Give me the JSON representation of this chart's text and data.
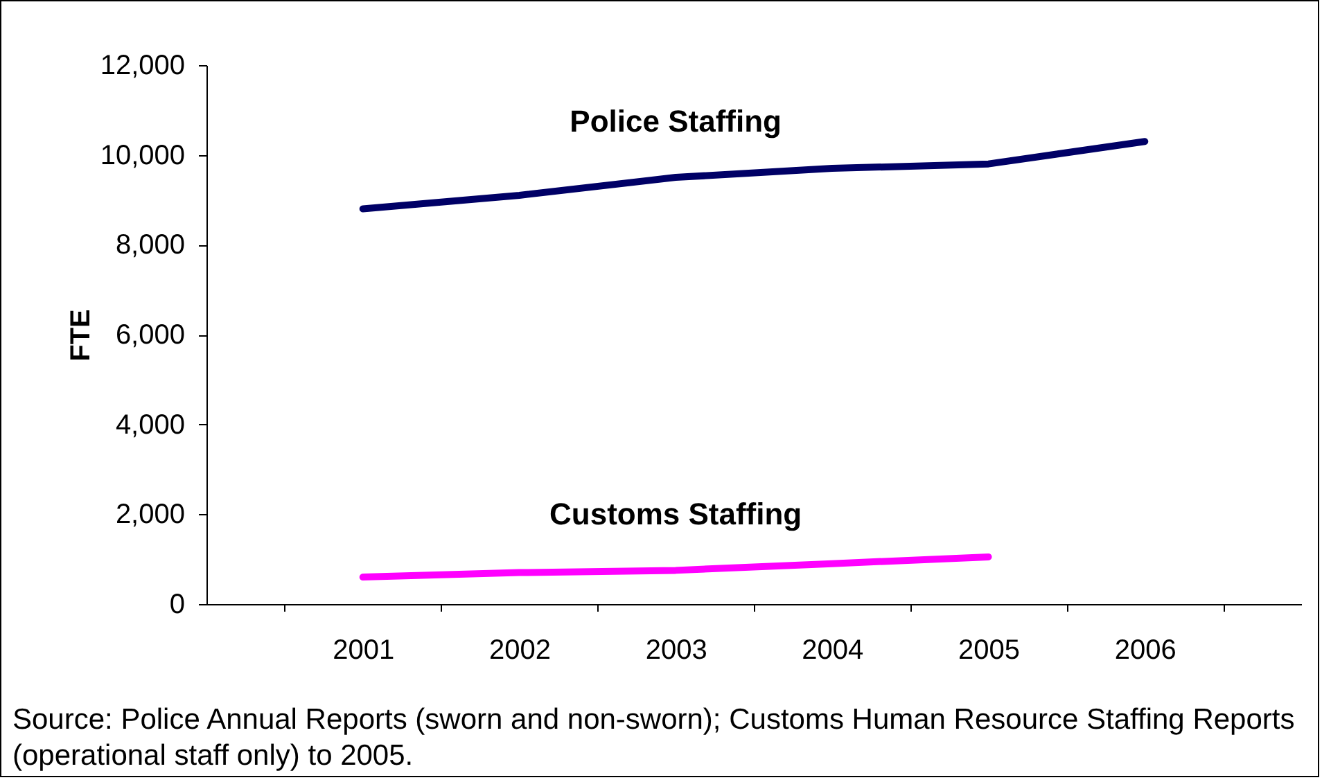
{
  "chart_data": {
    "type": "line",
    "ylabel": "FTE",
    "categories": [
      "2001",
      "2002",
      "2003",
      "2004",
      "2005",
      "2006"
    ],
    "series": [
      {
        "name": "Police Staffing",
        "color": "#000066",
        "values": [
          8800,
          9100,
          9500,
          9700,
          9800,
          10300
        ]
      },
      {
        "name": "Customs Staffing",
        "color": "#ff00ff",
        "values": [
          600,
          700,
          750,
          900,
          1050,
          null
        ]
      }
    ],
    "ylim": [
      0,
      12000
    ],
    "yticks": [
      0,
      {
        "value": 2000,
        "label": "2,000"
      },
      {
        "value": 4000,
        "label": "4,000"
      },
      {
        "value": 6000,
        "label": "6,000"
      },
      {
        "value": 8000,
        "label": "8,000"
      },
      {
        "value": 10000,
        "label": "10,000"
      },
      {
        "value": 12000,
        "label": "12,000"
      }
    ],
    "grid": false,
    "legend": false,
    "marker": "none",
    "line_style": "solid",
    "annotations": [
      "Source: Police Annual Reports (sworn and non-sworn); Customs Human Resource Staffing Reports (operational staff only) to 2005."
    ]
  }
}
